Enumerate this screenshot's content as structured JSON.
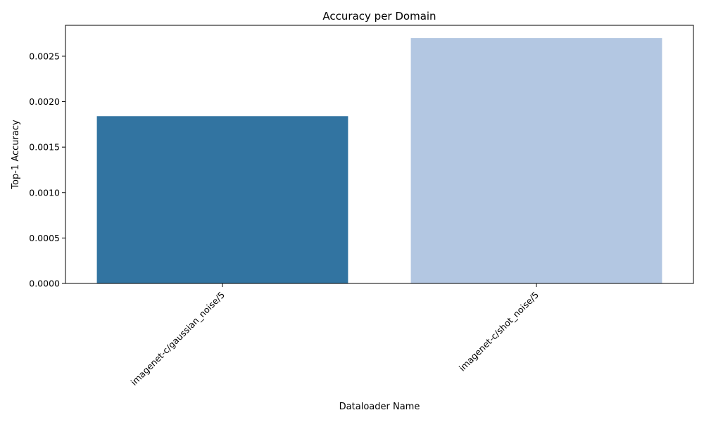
{
  "chart_data": {
    "type": "bar",
    "title": "Accuracy per Domain",
    "xlabel": "Dataloader Name",
    "ylabel": "Top-1 Accuracy",
    "categories": [
      "imagenet-c/gaussian_noise/5",
      "imagenet-c/shot_noise/5"
    ],
    "values": [
      0.00184,
      0.0027
    ],
    "colors": [
      "#3274a1",
      "#b3c7e2"
    ],
    "ylim": [
      0,
      0.00284
    ],
    "yticks": [
      0.0,
      0.0005,
      0.001,
      0.0015,
      0.002,
      0.0025
    ],
    "ytick_labels": [
      "0.0000",
      "0.0005",
      "0.0010",
      "0.0015",
      "0.0020",
      "0.0025"
    ],
    "grid": false,
    "xtick_rotation": 45
  }
}
